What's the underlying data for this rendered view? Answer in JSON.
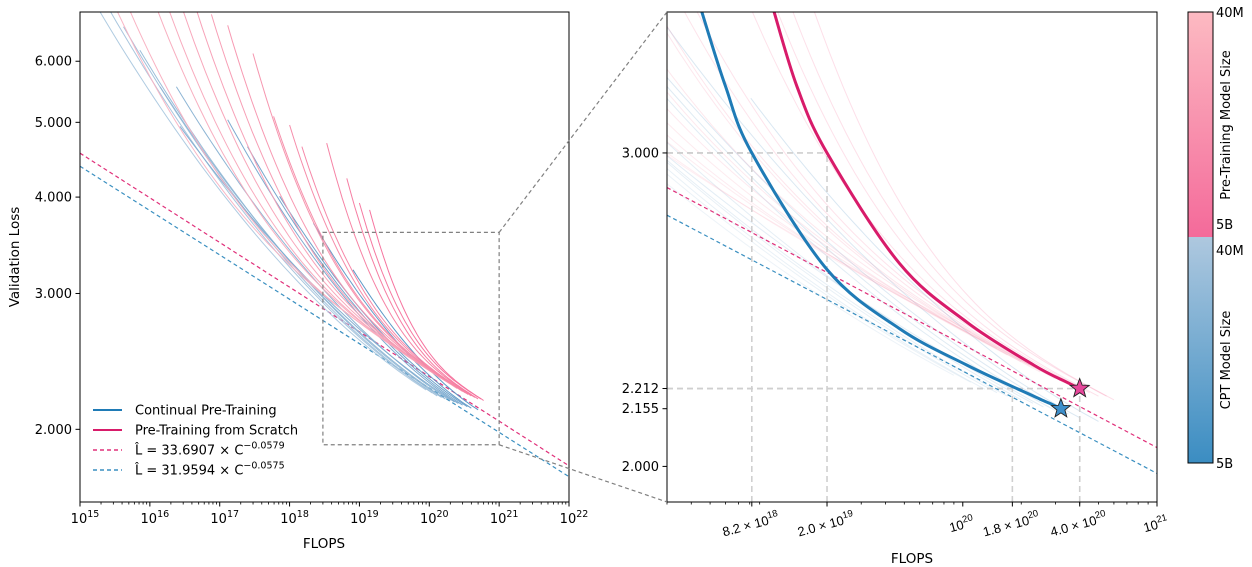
{
  "chart_data": [
    {
      "panel": "overview",
      "type": "line",
      "xlabel": "FLOPS",
      "ylabel": "Validation Loss",
      "x_scale": "log",
      "y_scale": "log",
      "xlim": [
        1000000000000000.0,
        1e+22
      ],
      "ylim": [
        1.61,
        6.95
      ],
      "grid": false,
      "xticks": [
        {
          "value": 1000000000000000.0,
          "base": "10",
          "exp": "15"
        },
        {
          "value": 1e+16,
          "base": "10",
          "exp": "16"
        },
        {
          "value": 1e+17,
          "base": "10",
          "exp": "17"
        },
        {
          "value": 1e+18,
          "base": "10",
          "exp": "18"
        },
        {
          "value": 1e+19,
          "base": "10",
          "exp": "19"
        },
        {
          "value": 1e+20,
          "base": "10",
          "exp": "20"
        },
        {
          "value": 1e+21,
          "base": "10",
          "exp": "21"
        },
        {
          "value": 1e+22,
          "base": "10",
          "exp": "22"
        }
      ],
      "yticks": [
        {
          "value": 2,
          "label": "2.000"
        },
        {
          "value": 3,
          "label": "3.000"
        },
        {
          "value": 4,
          "label": "4.000"
        },
        {
          "value": 5,
          "label": "5.000"
        },
        {
          "value": 6,
          "label": "6.000"
        }
      ],
      "legend": {
        "placement": "lower-left",
        "entries": [
          {
            "label": "Continual Pre-Training",
            "exp": "",
            "color": "#1f7bb6",
            "style": "solid"
          },
          {
            "label": "Pre-Training from Scratch",
            "exp": "",
            "color": "#d81b6a",
            "style": "solid"
          },
          {
            "label": "L̂ = 33.6907 × C",
            "exp": "−0.0579",
            "color": "#e0307a",
            "style": "dashed"
          },
          {
            "label": "L̂ = 31.9594 × C",
            "exp": "−0.0575",
            "color": "#3a8fc0",
            "style": "dashed"
          }
        ]
      },
      "fits": [
        {
          "name": "pre-training-fit",
          "coef": 33.6907,
          "exponent": -0.0579,
          "color": "#e0307a"
        },
        {
          "name": "cpt-fit",
          "coef": 31.9594,
          "exponent": -0.0575,
          "color": "#3a8fc0"
        }
      ],
      "zoom_box": {
        "x": [
          3e+18,
          1e+21
        ],
        "y": [
          1.91,
          3.6
        ]
      },
      "runs_pretraining": [
        {
          "start": [
            3400000000000000.0,
            6.97
          ],
          "end": [
            1.1e+20,
            2.38
          ],
          "color": "#f9b3c3"
        },
        {
          "start": [
            5200000000000000.0,
            6.97
          ],
          "end": [
            1.3e+20,
            2.35
          ],
          "color": "#f9afc0"
        },
        {
          "start": [
            1.3e+16,
            6.97
          ],
          "end": [
            1.5e+20,
            2.33
          ],
          "color": "#f8abbd"
        },
        {
          "start": [
            1.9e+16,
            6.97
          ],
          "end": [
            1.7e+20,
            2.31
          ],
          "color": "#f8a6ba"
        },
        {
          "start": [
            3e+16,
            6.97
          ],
          "end": [
            2e+20,
            2.29
          ],
          "color": "#f8a2b7"
        },
        {
          "start": [
            4.7e+16,
            6.97
          ],
          "end": [
            2.2e+20,
            2.28
          ],
          "color": "#f79db4"
        },
        {
          "start": [
            7.6e+16,
            6.9
          ],
          "end": [
            2.5e+20,
            2.26
          ],
          "color": "#f799b1"
        },
        {
          "start": [
            1.3e+17,
            6.68
          ],
          "end": [
            2.8e+20,
            2.25
          ],
          "color": "#f794ae"
        },
        {
          "start": [
            3e+17,
            6.14
          ],
          "end": [
            3e+20,
            2.24
          ],
          "color": "#f690ab"
        },
        {
          "start": [
            5.9e+17,
            5.09
          ],
          "end": [
            3.3e+20,
            2.23
          ],
          "color": "#f68ba8"
        },
        {
          "start": [
            1e+18,
            4.96
          ],
          "end": [
            3.6e+20,
            2.22
          ],
          "color": "#f686a5"
        },
        {
          "start": [
            1.5e+18,
            4.65
          ],
          "end": [
            4e+20,
            2.21
          ],
          "color": "#f681a3"
        },
        {
          "start": [
            3.4e+18,
            4.7
          ],
          "end": [
            4.5e+20,
            2.2
          ],
          "color": "#f57ca0"
        },
        {
          "start": [
            6.6e+18,
            4.23
          ],
          "end": [
            5e+20,
            2.19
          ],
          "color": "#f5779e"
        },
        {
          "start": [
            1e+19,
            3.93
          ],
          "end": [
            5.5e+20,
            2.19
          ],
          "color": "#f5729c"
        },
        {
          "start": [
            1.4e+19,
            3.85
          ],
          "end": [
            6e+20,
            2.18
          ],
          "color": "#f56d9a"
        }
      ],
      "runs_cpt": [
        {
          "start": [
            1900000000000000.0,
            6.97
          ],
          "end": [
            9e+19,
            2.25
          ],
          "color": "#abc8df"
        },
        {
          "start": [
            2700000000000000.0,
            6.97
          ],
          "end": [
            1.1e+20,
            2.23
          ],
          "color": "#a4c3dc"
        },
        {
          "start": [
            4200000000000000.0,
            6.65
          ],
          "end": [
            1.3e+20,
            2.21
          ],
          "color": "#9dbfda"
        },
        {
          "start": [
            7200000000000000.0,
            6.2
          ],
          "end": [
            1.5e+20,
            2.2
          ],
          "color": "#96bad7"
        },
        {
          "start": [
            1.4e+16,
            5.56
          ],
          "end": [
            1.7e+20,
            2.19
          ],
          "color": "#8eb5d4"
        },
        {
          "start": [
            2.4e+16,
            5.56
          ],
          "end": [
            2e+20,
            2.18
          ],
          "color": "#87b1d2"
        },
        {
          "start": [
            2.7e+16,
            4.94
          ],
          "end": [
            2.3e+20,
            2.17
          ],
          "color": "#7facd0"
        },
        {
          "start": [
            1.3e+17,
            5.04
          ],
          "end": [
            2.6e+20,
            2.16
          ],
          "color": "#77a7cd"
        },
        {
          "start": [
            2.5e+17,
            4.65
          ],
          "end": [
            3e+20,
            2.15
          ],
          "color": "#6fa2ca"
        },
        {
          "start": [
            7.2e+17,
            4.01
          ],
          "end": [
            3.5e+20,
            2.14
          ],
          "color": "#669dc8"
        },
        {
          "start": [
            2.2e+18,
            3.7
          ],
          "end": [
            4e+20,
            2.13
          ],
          "color": "#5d98c6"
        },
        {
          "start": [
            8.1e+18,
            3.22
          ],
          "end": [
            5e+20,
            2.12
          ],
          "color": "#5293c4"
        }
      ]
    },
    {
      "panel": "zoomed",
      "type": "line",
      "xlabel": "FLOPS",
      "ylabel": "",
      "x_scale": "log",
      "y_scale": "log",
      "xlim": [
        3e+18,
        1e+21
      ],
      "ylim": [
        1.91,
        3.6
      ],
      "grid": false,
      "xticks": [
        {
          "value": 8.2e+18,
          "base": "8.2 × 10",
          "exp": "18"
        },
        {
          "value": 2e+19,
          "base": "2.0 × 10",
          "exp": "19"
        },
        {
          "value": 1e+20,
          "base": "10",
          "exp": "20"
        },
        {
          "value": 1.8e+20,
          "base": "1.8 × 10",
          "exp": "20"
        },
        {
          "value": 4e+20,
          "base": "4.0 × 10",
          "exp": "20"
        },
        {
          "value": 1e+21,
          "base": "10",
          "exp": "21"
        }
      ],
      "yticks": [
        {
          "value": 2.0,
          "label": "2.000"
        },
        {
          "value": 2.155,
          "label": "2.155"
        },
        {
          "value": 2.212,
          "label": "2.212"
        },
        {
          "value": 3.0,
          "label": "3.000"
        }
      ],
      "reference_points": [
        {
          "flops": 8.2e+18,
          "loss": 3.0
        },
        {
          "flops": 2e+19,
          "loss": 3.0
        },
        {
          "flops": 1.8e+20,
          "loss": 2.212
        },
        {
          "flops": 4e+20,
          "loss": 2.212
        }
      ],
      "highlight_series": [
        {
          "name": "Continual Pre-Training",
          "color": "#1f7bb6",
          "points": [
            [
              4.5e+18,
              3.61
            ],
            [
              6e+18,
              3.27
            ],
            [
              8.2e+18,
              3.0
            ],
            [
              2e+19,
              2.58
            ],
            [
              4.73e+19,
              2.39
            ],
            [
              1.05e+20,
              2.28
            ],
            [
              2.32e+20,
              2.19
            ],
            [
              2.8e+20,
              2.17
            ],
            [
              3.2e+20,
              2.155
            ]
          ],
          "star": [
            3.2e+20,
            2.155
          ],
          "star_color": "#3d8fcb"
        },
        {
          "name": "Pre-Training from Scratch",
          "color": "#d81b6a",
          "points": [
            [
              1.06e+19,
              3.61
            ],
            [
              1.4e+19,
              3.27
            ],
            [
              2e+19,
              3.0
            ],
            [
              4.73e+19,
              2.6
            ],
            [
              1.05e+20,
              2.41
            ],
            [
              2.32e+20,
              2.28
            ],
            [
              3.44e+20,
              2.23
            ],
            [
              4e+20,
              2.212
            ]
          ],
          "star": [
            4e+20,
            2.212
          ],
          "star_color": "#e6469a"
        }
      ],
      "background_runs_opacity": 0.22
    }
  ],
  "colorbar": {
    "pretraining": {
      "label": "Pre-Training Model Size",
      "top": "40M",
      "bottom": "5B",
      "color_top": "#fcbac2",
      "color_bottom": "#f46a9a"
    },
    "cpt": {
      "label": "CPT Model Size",
      "top": "40M",
      "bottom": "5B",
      "color_top": "#aec8df",
      "color_bottom": "#3b8dc2"
    }
  }
}
